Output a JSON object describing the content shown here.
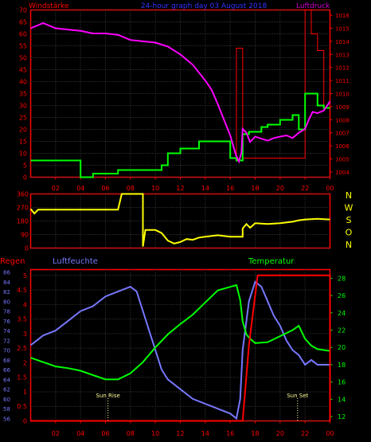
{
  "chart_data": [
    {
      "type": "line",
      "title": "24-hour graph day  03 August 2018",
      "left_axis_label": "Windstärke",
      "right_axis_label": "Luftdruck",
      "x_ticks": [
        "02",
        "04",
        "06",
        "08",
        "10",
        "12",
        "14",
        "16",
        "18",
        "20",
        "22",
        "00"
      ],
      "left_ticks": [
        0,
        5,
        10,
        15,
        20,
        25,
        30,
        35,
        40,
        45,
        50,
        55,
        60,
        65,
        70
      ],
      "right_ticks": [
        1004,
        1005,
        1006,
        1007,
        1008,
        1009,
        1010,
        1011,
        1012,
        1013,
        1014,
        1015,
        1016
      ],
      "xlim": [
        0,
        24
      ],
      "left_ylim": [
        0,
        70
      ],
      "right_ylim": [
        1003.6,
        1016.4
      ],
      "colors": {
        "axis": "#ff0000",
        "wind": "#00ff00",
        "gust": "#ff0000",
        "pressure": "#ff00ff",
        "title": "#3333ff"
      },
      "series": [
        {
          "key": "wind",
          "points": [
            [
              0,
              7
            ],
            [
              4,
              7
            ],
            [
              4,
              0
            ],
            [
              5,
              0
            ],
            [
              5,
              1.5
            ],
            [
              7,
              1.5
            ],
            [
              7,
              3
            ],
            [
              10.5,
              3
            ],
            [
              10.5,
              5
            ],
            [
              11,
              5
            ],
            [
              11,
              10
            ],
            [
              12,
              10
            ],
            [
              12,
              12
            ],
            [
              13.5,
              12
            ],
            [
              13.5,
              15
            ],
            [
              16,
              15
            ],
            [
              16,
              8
            ],
            [
              16.5,
              8
            ],
            [
              16.5,
              7
            ],
            [
              17,
              7
            ],
            [
              17,
              18
            ],
            [
              17.5,
              18
            ],
            [
              17.5,
              19
            ],
            [
              18.5,
              19
            ],
            [
              18.5,
              21
            ],
            [
              19,
              21
            ],
            [
              19,
              22
            ],
            [
              20,
              22
            ],
            [
              20,
              24
            ],
            [
              21,
              24
            ],
            [
              21,
              26
            ],
            [
              21.5,
              26
            ],
            [
              21.5,
              20
            ],
            [
              22,
              20
            ],
            [
              22,
              35
            ],
            [
              23,
              35
            ],
            [
              23,
              30
            ],
            [
              23.5,
              30
            ],
            [
              23.5,
              29
            ],
            [
              24,
              29
            ]
          ]
        },
        {
          "key": "gust",
          "points": [
            [
              16.5,
              8
            ],
            [
              16.5,
              54
            ],
            [
              17,
              54
            ],
            [
              17,
              8
            ],
            [
              22,
              8
            ],
            [
              22,
              70
            ],
            [
              22.5,
              70
            ],
            [
              22.5,
              60
            ],
            [
              23,
              60
            ],
            [
              23,
              53
            ],
            [
              23.5,
              53
            ],
            [
              23.5,
              30
            ]
          ]
        },
        {
          "key": "pressure",
          "points": [
            [
              0,
              1015.0
            ],
            [
              1,
              1015.4
            ],
            [
              2,
              1015.0
            ],
            [
              3,
              1014.9
            ],
            [
              4,
              1014.8
            ],
            [
              5,
              1014.6
            ],
            [
              6,
              1014.6
            ],
            [
              7,
              1014.5
            ],
            [
              8,
              1014.1
            ],
            [
              9,
              1014.0
            ],
            [
              10,
              1013.9
            ],
            [
              11,
              1013.6
            ],
            [
              12,
              1013.0
            ],
            [
              13,
              1012.2
            ],
            [
              14,
              1011.0
            ],
            [
              14.5,
              1010.3
            ],
            [
              15,
              1009.2
            ],
            [
              15.5,
              1008.0
            ],
            [
              16,
              1006.8
            ],
            [
              16.3,
              1005.8
            ],
            [
              16.5,
              1005.2
            ],
            [
              16.7,
              1004.8
            ],
            [
              16.9,
              1005.5
            ],
            [
              17,
              1007.3
            ],
            [
              17.3,
              1007.0
            ],
            [
              17.6,
              1006.3
            ],
            [
              18,
              1006.7
            ],
            [
              19,
              1006.4
            ],
            [
              19.5,
              1006.6
            ],
            [
              20,
              1006.7
            ],
            [
              20.5,
              1006.8
            ],
            [
              21,
              1006.6
            ],
            [
              21.5,
              1007.0
            ],
            [
              22,
              1007.3
            ],
            [
              22.3,
              1008.0
            ],
            [
              22.6,
              1008.6
            ],
            [
              23,
              1008.5
            ],
            [
              23.5,
              1008.7
            ],
            [
              24,
              1009.4
            ]
          ]
        }
      ]
    },
    {
      "type": "line",
      "right_axis_labels": [
        "N",
        "W",
        "S",
        "O",
        "N"
      ],
      "left_ticks": [
        0,
        90,
        180,
        270,
        360
      ],
      "xlim": [
        0,
        24
      ],
      "ylim": [
        0,
        360
      ],
      "colors": {
        "axis": "#ff0000",
        "direction": "#ffff00"
      },
      "series": [
        {
          "key": "direction",
          "points": [
            [
              0,
              260
            ],
            [
              0.3,
              230
            ],
            [
              0.6,
              255
            ],
            [
              2,
              255
            ],
            [
              4,
              255
            ],
            [
              6,
              255
            ],
            [
              7,
              255
            ],
            [
              7.3,
              360
            ],
            [
              9,
              360
            ],
            [
              9,
              10
            ],
            [
              9.2,
              120
            ],
            [
              10,
              120
            ],
            [
              10.5,
              100
            ],
            [
              11,
              50
            ],
            [
              11.5,
              30
            ],
            [
              12,
              40
            ],
            [
              12.5,
              60
            ],
            [
              13,
              55
            ],
            [
              13.5,
              70
            ],
            [
              14,
              75
            ],
            [
              15,
              85
            ],
            [
              16,
              75
            ],
            [
              17,
              75
            ],
            [
              17,
              130
            ],
            [
              17.3,
              160
            ],
            [
              17.6,
              135
            ],
            [
              18,
              165
            ],
            [
              19,
              160
            ],
            [
              20,
              165
            ],
            [
              21,
              175
            ],
            [
              21.5,
              185
            ],
            [
              22,
              190
            ],
            [
              23,
              195
            ],
            [
              24,
              190
            ]
          ]
        }
      ]
    },
    {
      "type": "line",
      "left_axis_label": "Regen",
      "second_axis_label": "Luftfeuchte",
      "right_axis_label": "Temperatur",
      "annotations": [
        {
          "text": "Sun Rise",
          "x": 6.2
        },
        {
          "text": "Sun Set",
          "x": 21.4
        }
      ],
      "x_ticks": [
        "02",
        "04",
        "06",
        "08",
        "10",
        "12",
        "14",
        "16",
        "18",
        "20",
        "22",
        "00"
      ],
      "rain_ticks": [
        0,
        0.5,
        1,
        1.5,
        2,
        2.5,
        3,
        3.5,
        4,
        4.5,
        5
      ],
      "humidity_ticks": [
        56,
        58,
        60,
        62,
        64,
        66,
        68,
        70,
        72,
        74,
        76,
        78,
        80,
        82,
        84,
        86
      ],
      "temp_ticks": [
        12,
        14,
        16,
        18,
        20,
        22,
        24,
        26,
        28
      ],
      "xlim": [
        0,
        24
      ],
      "rain_ylim": [
        0,
        5.2
      ],
      "humidity_ylim": [
        55.5,
        86.5
      ],
      "temp_ylim": [
        11.5,
        29.0
      ],
      "colors": {
        "rain": "#ff0000",
        "humidity": "#7777ff",
        "temp": "#00ff00",
        "axis": "#ff0000",
        "annot": "#ffff99"
      },
      "series": [
        {
          "key": "rain",
          "points": [
            [
              0,
              0
            ],
            [
              17,
              0
            ],
            [
              17.5,
              2.6
            ],
            [
              18.2,
              5.0
            ],
            [
              24,
              5.0
            ],
            [
              24,
              0
            ]
          ]
        },
        {
          "key": "humidity",
          "points": [
            [
              0,
              71
            ],
            [
              0.5,
              72
            ],
            [
              1,
              73
            ],
            [
              2,
              74
            ],
            [
              3,
              76
            ],
            [
              4,
              78
            ],
            [
              5,
              79
            ],
            [
              6,
              81
            ],
            [
              7,
              82
            ],
            [
              8,
              83
            ],
            [
              8.5,
              82
            ],
            [
              9,
              78
            ],
            [
              9.5,
              74
            ],
            [
              10,
              70
            ],
            [
              10.5,
              66
            ],
            [
              11,
              64
            ],
            [
              12,
              62
            ],
            [
              13,
              60
            ],
            [
              14,
              59
            ],
            [
              15,
              58
            ],
            [
              16,
              57
            ],
            [
              16.5,
              56
            ],
            [
              16.8,
              60
            ],
            [
              17,
              70
            ],
            [
              17.5,
              80
            ],
            [
              18,
              84
            ],
            [
              18.5,
              83
            ],
            [
              19,
              80
            ],
            [
              19.5,
              77
            ],
            [
              20,
              75
            ],
            [
              20.5,
              72
            ],
            [
              21,
              70
            ],
            [
              21.5,
              69
            ],
            [
              22,
              67
            ],
            [
              22.5,
              68
            ],
            [
              23,
              67
            ],
            [
              24,
              67
            ]
          ]
        },
        {
          "key": "temp",
          "points": [
            [
              0,
              18.8
            ],
            [
              1,
              18.3
            ],
            [
              2,
              17.8
            ],
            [
              3,
              17.6
            ],
            [
              4,
              17.3
            ],
            [
              5,
              16.8
            ],
            [
              6,
              16.3
            ],
            [
              7,
              16.3
            ],
            [
              8,
              17.0
            ],
            [
              9,
              18.3
            ],
            [
              10,
              20.0
            ],
            [
              11,
              21.5
            ],
            [
              12,
              22.7
            ],
            [
              13,
              23.8
            ],
            [
              14,
              25.2
            ],
            [
              15,
              26.6
            ],
            [
              16,
              27.0
            ],
            [
              16.5,
              27.2
            ],
            [
              16.8,
              25.5
            ],
            [
              17,
              23.0
            ],
            [
              17.3,
              21.5
            ],
            [
              17.6,
              21.0
            ],
            [
              18,
              20.5
            ],
            [
              19,
              20.6
            ],
            [
              20,
              21.3
            ],
            [
              21,
              22.0
            ],
            [
              21.5,
              22.5
            ],
            [
              22,
              21.0
            ],
            [
              22.5,
              20.2
            ],
            [
              23,
              19.8
            ],
            [
              24,
              19.6
            ]
          ]
        }
      ]
    }
  ]
}
